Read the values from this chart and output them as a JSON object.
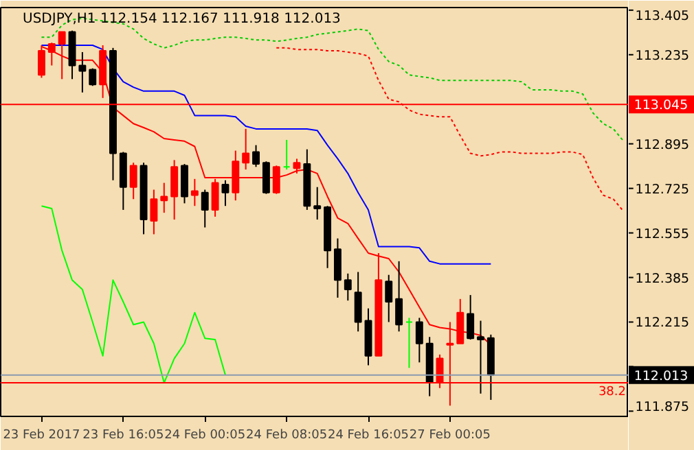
{
  "chart_data": {
    "type": "candlestick",
    "title": "USDJPY,H1  112.154 112.167 111.918 112.013",
    "categories": [
      "23 Feb 2017",
      null,
      null,
      null,
      null,
      null,
      null,
      null,
      "23 Feb 16:05",
      null,
      null,
      null,
      null,
      null,
      null,
      null,
      "24 Feb 00:05",
      null,
      null,
      null,
      null,
      null,
      null,
      null,
      "24 Feb 08:05",
      null,
      null,
      null,
      null,
      null,
      null,
      null,
      "24 Feb 16:05",
      null,
      null,
      null,
      null,
      null,
      null,
      null,
      "27 Feb 00:05",
      null,
      null,
      null,
      null,
      null,
      null,
      null,
      null,
      null,
      null,
      null,
      null,
      null,
      null,
      null,
      null,
      null
    ],
    "ohlc": [
      [
        113.158,
        113.271,
        113.147,
        113.25
      ],
      [
        113.245,
        113.281,
        113.194,
        113.276
      ],
      [
        113.276,
        113.322,
        113.142,
        113.322
      ],
      [
        113.322,
        113.327,
        113.142,
        113.194
      ],
      [
        113.194,
        113.245,
        113.091,
        113.173
      ],
      [
        113.178,
        113.183,
        113.116,
        113.121
      ],
      [
        113.121,
        113.271,
        113.07,
        113.25
      ],
      [
        113.25,
        113.261,
        112.756,
        112.859
      ],
      [
        112.859,
        112.864,
        112.643,
        112.73
      ],
      [
        112.73,
        112.823,
        112.684,
        112.812
      ],
      [
        112.812,
        112.823,
        112.55,
        112.606
      ],
      [
        112.601,
        112.72,
        112.55,
        112.684
      ],
      [
        112.679,
        112.746,
        112.632,
        112.694
      ],
      [
        112.694,
        112.833,
        112.606,
        112.807
      ],
      [
        112.812,
        112.818,
        112.668,
        112.694
      ],
      [
        112.699,
        112.761,
        112.658,
        112.715
      ],
      [
        112.709,
        112.72,
        112.576,
        112.643
      ],
      [
        112.643,
        112.761,
        112.617,
        112.746
      ],
      [
        112.74,
        112.756,
        112.658,
        112.709
      ],
      [
        112.709,
        112.869,
        112.679,
        112.828
      ],
      [
        112.823,
        112.952,
        112.797,
        112.859
      ],
      [
        112.864,
        112.89,
        112.807,
        112.818
      ],
      [
        112.823,
        112.828,
        112.704,
        112.709
      ],
      [
        112.709,
        112.812,
        112.704,
        112.807
      ],
      [
        112.807,
        112.91,
        112.797,
        112.807
      ],
      [
        112.802,
        112.838,
        112.782,
        112.823
      ],
      [
        112.818,
        112.874,
        112.643,
        112.658
      ],
      [
        112.658,
        112.73,
        112.606,
        112.648
      ],
      [
        112.653,
        112.658,
        112.421,
        112.488
      ],
      [
        112.493,
        112.534,
        112.308,
        112.375
      ],
      [
        112.375,
        112.4,
        112.297,
        112.339
      ],
      [
        112.328,
        112.406,
        112.179,
        112.215
      ],
      [
        112.22,
        112.267,
        112.05,
        112.086
      ],
      [
        112.086,
        112.478,
        112.086,
        112.375
      ],
      [
        112.37,
        112.395,
        112.215,
        112.292
      ],
      [
        112.303,
        112.447,
        112.179,
        112.205
      ],
      [
        112.215,
        112.231,
        112.04,
        112.215
      ],
      [
        112.215,
        112.231,
        112.061,
        112.133
      ],
      [
        112.133,
        112.158,
        111.932,
        111.983
      ],
      [
        111.983,
        112.091,
        111.963,
        112.076
      ],
      [
        112.128,
        112.215,
        111.896,
        112.133
      ],
      [
        112.133,
        112.303,
        112.133,
        112.251
      ],
      [
        112.246,
        112.318,
        112.148,
        112.153
      ],
      [
        112.158,
        112.22,
        111.942,
        112.148
      ],
      [
        112.154,
        112.167,
        111.918,
        112.013
      ],
      null,
      null,
      null,
      null,
      null,
      null,
      null,
      null,
      null,
      null,
      null,
      null,
      null
    ],
    "colors": [
      "#ff0000",
      "#ff0000",
      "#ff0000",
      "#000000",
      "#000000",
      "#000000",
      "#ff0000",
      "#000000",
      "#000000",
      "#ff0000",
      "#000000",
      "#ff0000",
      "#ff0000",
      "#ff0000",
      "#000000",
      "#ff0000",
      "#000000",
      "#ff0000",
      "#000000",
      "#ff0000",
      "#ff0000",
      "#000000",
      "#000000",
      "#ff0000",
      "#00ff00",
      "#ff0000",
      "#000000",
      "#000000",
      "#000000",
      "#000000",
      "#000000",
      "#000000",
      "#000000",
      "#ff0000",
      "#000000",
      "#000000",
      "#00ff00",
      "#000000",
      "#000000",
      "#ff0000",
      "#ff0000",
      "#ff0000",
      "#000000",
      "#000000",
      "#000000",
      null,
      null,
      null,
      null,
      null,
      null,
      null,
      null,
      null,
      null,
      null,
      null,
      null
    ],
    "series": [
      {
        "type": "line",
        "color": "#ff0000",
        "line_style": "solid",
        "values": [
          113.266,
          113.25,
          113.23,
          113.214,
          113.214,
          113.214,
          113.168,
          113.034,
          113.003,
          112.972,
          112.957,
          112.941,
          112.915,
          112.91,
          112.905,
          112.885,
          112.766,
          112.766,
          112.766,
          112.766,
          112.766,
          112.766,
          112.766,
          112.766,
          112.776,
          112.792,
          112.797,
          112.782,
          112.694,
          112.612,
          112.591,
          112.534,
          112.478,
          112.467,
          112.457,
          112.406,
          112.339,
          112.272,
          112.205,
          112.194,
          112.189,
          112.179,
          112.174,
          112.164,
          112.128,
          null,
          null,
          null,
          null,
          null,
          null,
          null,
          null,
          null,
          null,
          null,
          null,
          null
        ]
      },
      {
        "type": "line",
        "color": "#0000ff",
        "line_style": "solid",
        "values": [
          113.271,
          113.271,
          113.271,
          113.271,
          113.271,
          113.271,
          113.255,
          113.183,
          113.132,
          113.111,
          113.096,
          113.096,
          113.096,
          113.096,
          113.08,
          113.003,
          113.003,
          113.003,
          113.003,
          112.998,
          112.962,
          112.952,
          112.952,
          112.952,
          112.952,
          112.952,
          112.952,
          112.946,
          112.89,
          112.838,
          112.782,
          112.709,
          112.643,
          112.503,
          112.503,
          112.503,
          112.503,
          112.498,
          112.447,
          112.437,
          112.437,
          112.437,
          112.437,
          112.437,
          112.437,
          null,
          null,
          null,
          null,
          null,
          null,
          null,
          null,
          null,
          null,
          null,
          null,
          null
        ]
      },
      {
        "type": "line",
        "color": "#00ff00",
        "line_style": "solid",
        "values": [
          112.658,
          112.648,
          112.488,
          112.375,
          112.339,
          112.215,
          112.086,
          112.375,
          112.292,
          112.205,
          112.215,
          112.133,
          111.983,
          112.076,
          112.133,
          112.251,
          112.153,
          112.148,
          112.013,
          null,
          null,
          null,
          null,
          null,
          null,
          null,
          null,
          null,
          null,
          null,
          null,
          null,
          null,
          null,
          null,
          null,
          null,
          null,
          null,
          null,
          null,
          null,
          null,
          null,
          null,
          null,
          null,
          null,
          null,
          null,
          null,
          null,
          null,
          null,
          null,
          null,
          null,
          null
        ]
      },
      {
        "type": "line",
        "color": "#00cc00",
        "line_style": "dotted",
        "values": [
          113.302,
          113.302,
          113.348,
          113.369,
          113.374,
          113.369,
          113.364,
          113.358,
          113.353,
          113.333,
          113.297,
          113.276,
          113.261,
          113.271,
          113.286,
          113.291,
          113.291,
          113.297,
          113.302,
          113.302,
          113.297,
          113.291,
          113.291,
          113.286,
          113.291,
          113.297,
          113.302,
          113.312,
          113.317,
          113.322,
          113.327,
          113.333,
          113.327,
          113.255,
          113.209,
          113.194,
          113.158,
          113.152,
          113.147,
          113.137,
          113.137,
          113.137,
          113.137,
          113.137,
          113.137,
          113.137,
          113.137,
          113.132,
          113.101,
          113.101,
          113.101,
          113.096,
          113.096,
          113.085,
          113.013,
          112.972,
          112.952,
          112.905
        ]
      },
      {
        "type": "line",
        "color": "#ff0000",
        "line_style": "dotted",
        "values": [
          null,
          null,
          null,
          null,
          null,
          null,
          null,
          null,
          null,
          null,
          null,
          null,
          null,
          null,
          null,
          null,
          null,
          null,
          null,
          null,
          null,
          null,
          null,
          113.261,
          113.261,
          113.255,
          113.255,
          113.255,
          113.25,
          113.25,
          113.245,
          113.24,
          113.23,
          113.137,
          113.065,
          113.055,
          113.024,
          113.008,
          113.003,
          112.998,
          112.998,
          112.926,
          112.859,
          112.849,
          112.854,
          112.864,
          112.864,
          112.859,
          112.859,
          112.859,
          112.859,
          112.864,
          112.864,
          112.854,
          112.766,
          112.699,
          112.684,
          112.637
        ]
      }
    ],
    "ylim": [
      111.855,
      113.415
    ],
    "yticks": [
      113.405,
      113.235,
      {
        "value": 113.065,
        "label": null
      },
      112.895,
      112.725,
      112.555,
      112.385,
      112.215,
      {
        "value": 112.045,
        "label": null
      },
      111.875
    ],
    "ref_lines": [
      {
        "axis": "y",
        "value": 113.045,
        "label": "113.045",
        "color": "#ff0000"
      },
      {
        "axis": "y",
        "value": 112.013,
        "label": "112.013",
        "color": "#8a9bb0"
      },
      {
        "axis": "y",
        "value": 111.983,
        "color": "#ff0000"
      }
    ],
    "annotations": [
      "38.2"
    ],
    "grid": false
  }
}
